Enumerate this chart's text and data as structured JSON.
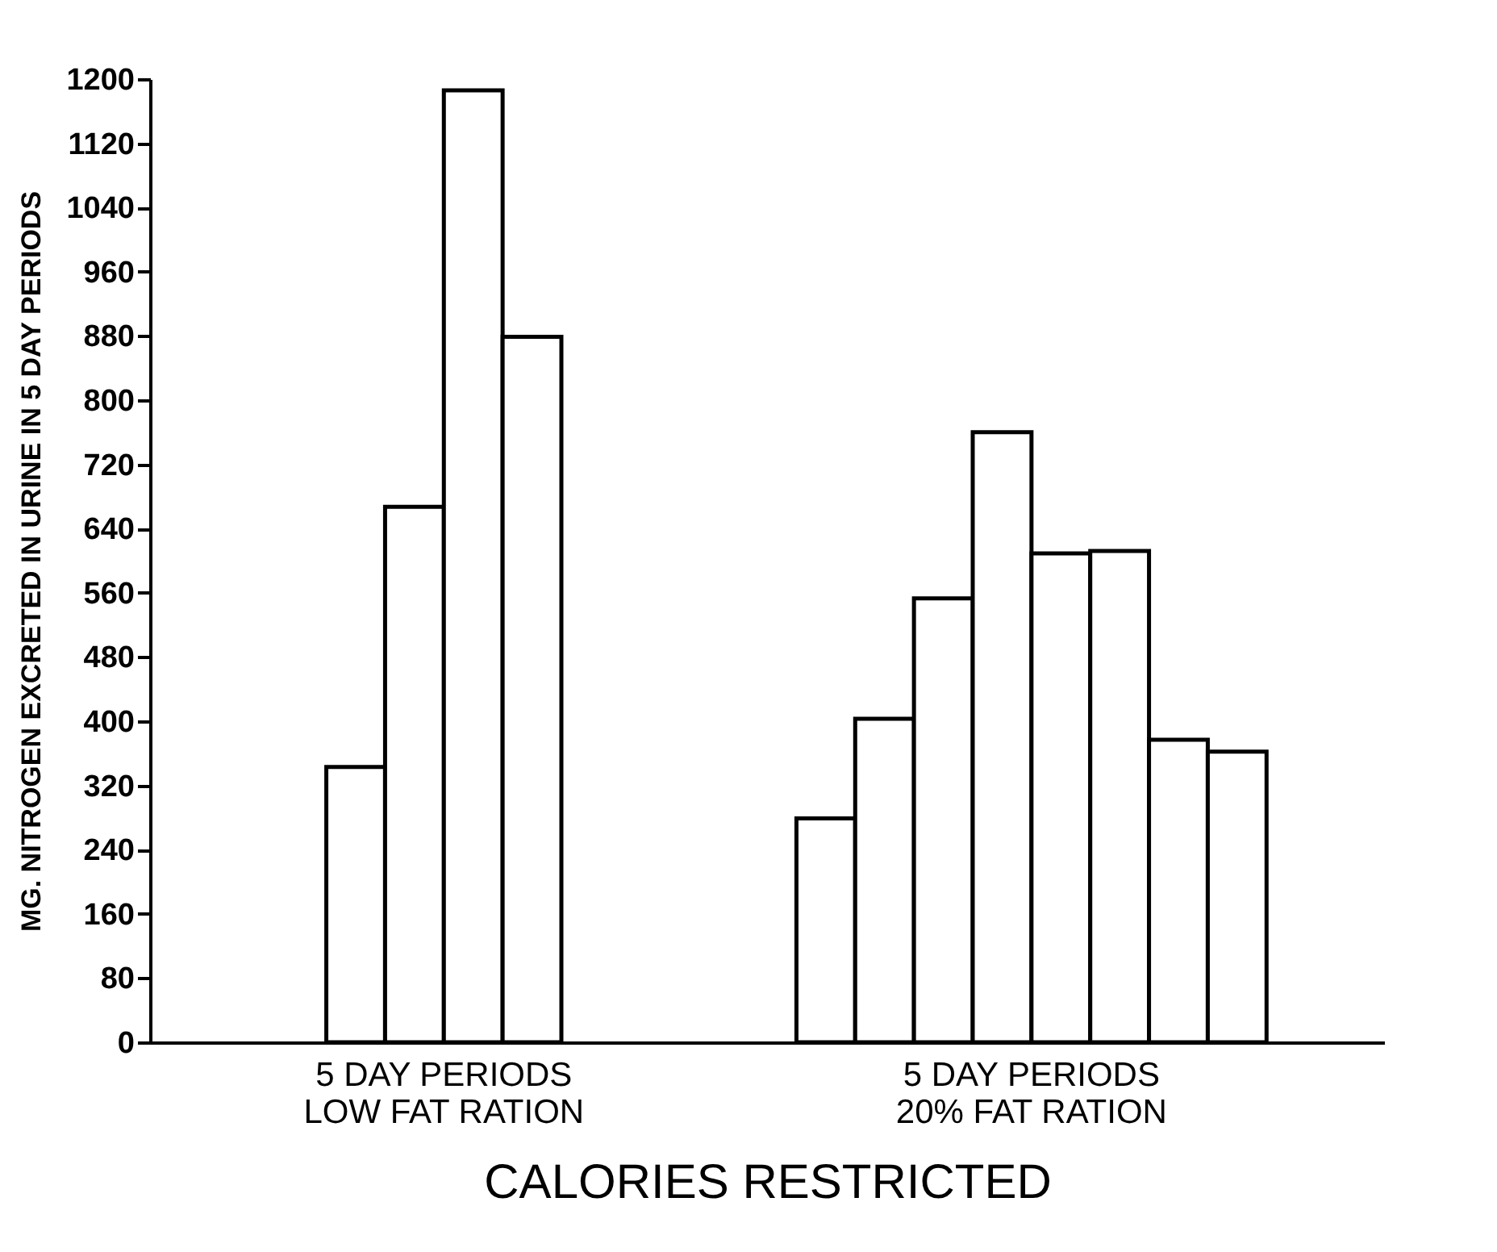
{
  "chart_data": {
    "type": "bar",
    "xlabel": "CALORIES RESTRICTED",
    "ylabel": "MG. NITROGEN EXCRETED IN URINE IN 5 DAY PERIODS",
    "categories": [
      null,
      null,
      null,
      null,
      null,
      null,
      null,
      null,
      null,
      null,
      null,
      null,
      null,
      null,
      null,
      null,
      null,
      null,
      null,
      null,
      null
    ],
    "values": [
      null,
      null,
      null,
      343,
      667,
      1186,
      879,
      null,
      null,
      null,
      null,
      279,
      403,
      553,
      760,
      609,
      612,
      377,
      362,
      null,
      null
    ],
    "color": "#ffffff",
    "ylim": [
      0,
      1200
    ],
    "yticks": [
      0,
      80,
      160,
      240,
      320,
      400,
      480,
      560,
      640,
      720,
      800,
      880,
      960,
      1040,
      1120,
      1200
    ],
    "annotations": [
      "5 DAY PERIODS\nLOW FAT RATION",
      "5 DAY PERIODS\n20% FAT RATION"
    ],
    "grid": false
  }
}
